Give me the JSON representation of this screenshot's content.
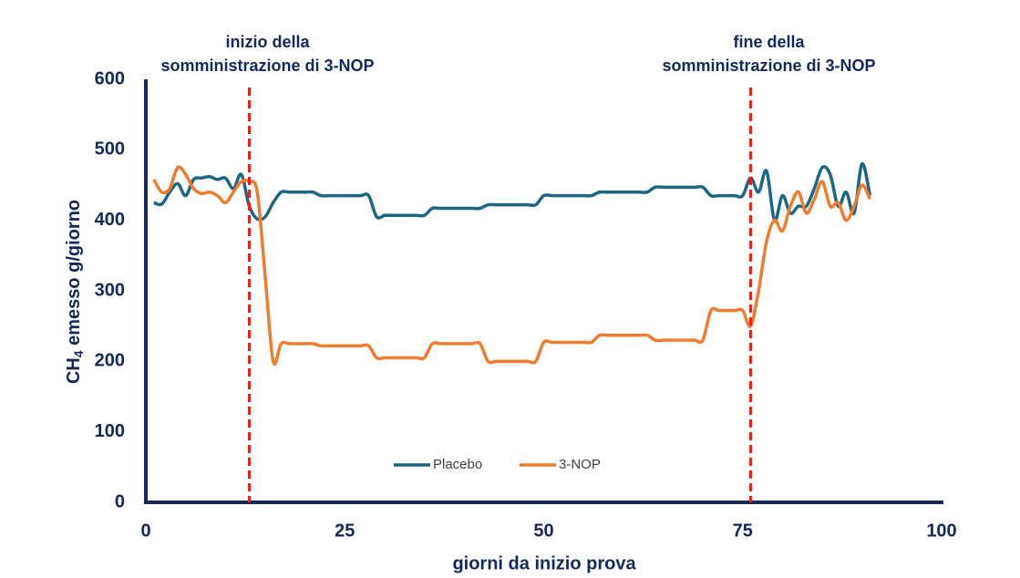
{
  "chart_data": {
    "type": "line",
    "x_label": "giorni da inizio prova",
    "y_label": [
      "CH",
      "4",
      " emesso g/giorno"
    ],
    "x": [
      1,
      2,
      3,
      4,
      5,
      6,
      7,
      8,
      9,
      10,
      11,
      12,
      13,
      14,
      15,
      16,
      17,
      18,
      19,
      20,
      21,
      22,
      23,
      24,
      25,
      26,
      27,
      28,
      29,
      30,
      31,
      32,
      33,
      34,
      35,
      36,
      37,
      38,
      39,
      40,
      41,
      42,
      43,
      44,
      45,
      46,
      47,
      48,
      49,
      50,
      51,
      52,
      53,
      54,
      55,
      56,
      57,
      58,
      59,
      60,
      61,
      62,
      63,
      64,
      65,
      66,
      67,
      68,
      69,
      70,
      71,
      72,
      73,
      74,
      75,
      76,
      77,
      78,
      79,
      80,
      81,
      82,
      83,
      84,
      85,
      86,
      87,
      88,
      89,
      90,
      91
    ],
    "series": [
      {
        "name": "Placebo",
        "color": "#1f6683",
        "values": [
          425,
          423,
          440,
          452,
          435,
          458,
          460,
          462,
          458,
          460,
          445,
          465,
          420,
          402,
          405,
          425,
          440,
          440,
          440,
          440,
          440,
          435,
          435,
          435,
          435,
          435,
          435,
          435,
          405,
          407,
          407,
          407,
          407,
          407,
          407,
          417,
          417,
          417,
          417,
          417,
          417,
          417,
          422,
          422,
          422,
          422,
          422,
          422,
          422,
          435,
          435,
          435,
          435,
          435,
          435,
          435,
          440,
          440,
          440,
          440,
          440,
          440,
          440,
          447,
          447,
          447,
          447,
          447,
          447,
          447,
          435,
          435,
          435,
          435,
          435,
          460,
          440,
          470,
          400,
          435,
          410,
          420,
          420,
          445,
          475,
          465,
          420,
          440,
          410,
          480,
          435
        ]
      },
      {
        "name": "3-NOP",
        "color": "#ed7d31",
        "values": [
          458,
          440,
          445,
          475,
          465,
          445,
          438,
          440,
          435,
          425,
          440,
          455,
          455,
          440,
          320,
          200,
          225,
          225,
          225,
          225,
          225,
          222,
          222,
          222,
          222,
          222,
          222,
          222,
          205,
          205,
          205,
          205,
          205,
          205,
          205,
          225,
          225,
          225,
          225,
          225,
          225,
          225,
          200,
          200,
          200,
          200,
          200,
          200,
          200,
          227,
          227,
          227,
          227,
          227,
          227,
          227,
          237,
          237,
          237,
          237,
          237,
          237,
          237,
          230,
          230,
          230,
          230,
          230,
          230,
          230,
          272,
          272,
          272,
          272,
          272,
          250,
          300,
          370,
          400,
          385,
          420,
          440,
          410,
          430,
          455,
          420,
          425,
          400,
          420,
          450,
          430
        ]
      }
    ],
    "xlim": [
      0,
      100
    ],
    "xticks": [
      0,
      25,
      50,
      75,
      100
    ],
    "ylim": [
      0,
      600
    ],
    "yticks": [
      0,
      100,
      200,
      300,
      400,
      500,
      600
    ],
    "grid": false,
    "legend": "bottom-center",
    "annotations": [
      {
        "x": 13,
        "color": "#e8201e",
        "text": [
          "inizio della",
          "somministrazione  di 3-NOP"
        ]
      },
      {
        "x": 76,
        "color": "#e8201e",
        "text": [
          "fine della",
          "somministrazione  di 3-NOP"
        ]
      }
    ]
  }
}
